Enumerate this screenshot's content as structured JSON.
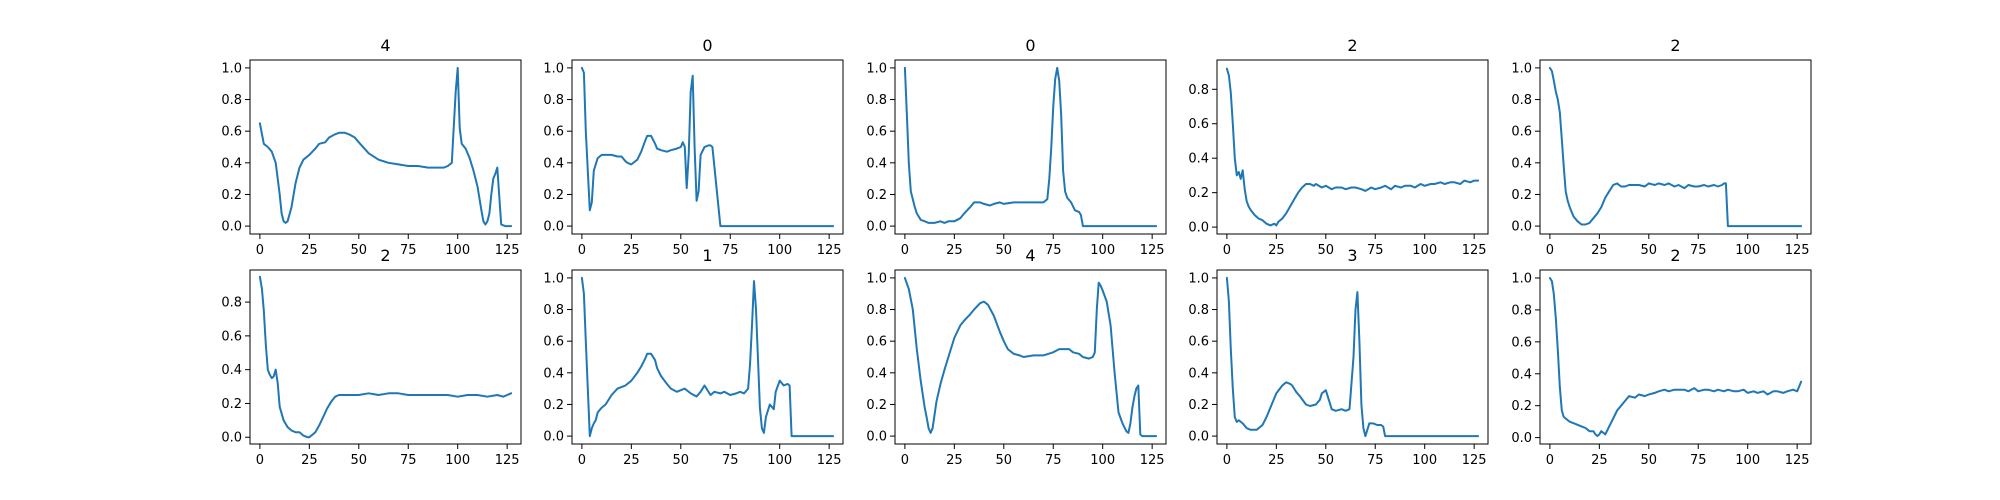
{
  "figure": {
    "background": "#ffffff",
    "line_color": "#1f77b4"
  },
  "chart_data": [
    {
      "type": "line",
      "title": "4",
      "xlabel": "",
      "ylabel": "",
      "xlim": [
        -5,
        132
      ],
      "ylim": [
        -0.05,
        1.05
      ],
      "xticks": [
        0,
        25,
        50,
        75,
        100,
        125
      ],
      "yticks": [
        0.0,
        0.2,
        0.4,
        0.6,
        0.8,
        1.0
      ],
      "grid": false,
      "x": [
        0,
        2,
        4,
        6,
        8,
        9,
        10,
        11,
        12,
        13,
        14,
        16,
        18,
        20,
        22,
        25,
        28,
        30,
        33,
        35,
        38,
        40,
        43,
        45,
        48,
        50,
        55,
        60,
        65,
        70,
        75,
        80,
        85,
        90,
        93,
        95,
        97,
        98,
        99,
        100,
        101,
        102,
        104,
        106,
        108,
        110,
        112,
        113,
        114,
        115,
        116,
        117,
        118,
        119,
        120,
        122,
        124,
        127
      ],
      "y": [
        0.65,
        0.52,
        0.5,
        0.47,
        0.4,
        0.3,
        0.2,
        0.08,
        0.03,
        0.02,
        0.03,
        0.12,
        0.27,
        0.37,
        0.42,
        0.45,
        0.49,
        0.52,
        0.53,
        0.56,
        0.58,
        0.59,
        0.59,
        0.58,
        0.56,
        0.53,
        0.46,
        0.42,
        0.4,
        0.39,
        0.38,
        0.38,
        0.37,
        0.37,
        0.37,
        0.38,
        0.4,
        0.62,
        0.85,
        1.0,
        0.62,
        0.52,
        0.49,
        0.43,
        0.35,
        0.25,
        0.1,
        0.03,
        0.01,
        0.03,
        0.08,
        0.2,
        0.3,
        0.33,
        0.37,
        0.01,
        0.0,
        0.0
      ]
    },
    {
      "type": "line",
      "title": "0",
      "xlabel": "",
      "ylabel": "",
      "xlim": [
        -5,
        132
      ],
      "ylim": [
        -0.05,
        1.05
      ],
      "xticks": [
        0,
        25,
        50,
        75,
        100,
        125
      ],
      "yticks": [
        0.0,
        0.2,
        0.4,
        0.6,
        0.8,
        1.0
      ],
      "grid": false,
      "x": [
        0,
        1,
        2,
        3,
        4,
        5,
        6,
        8,
        10,
        12,
        15,
        18,
        20,
        22,
        23,
        25,
        28,
        30,
        32,
        33,
        35,
        37,
        38,
        40,
        43,
        45,
        48,
        50,
        51,
        52,
        53,
        54,
        55,
        56,
        57,
        58,
        59,
        60,
        62,
        64,
        65,
        66,
        70,
        80,
        90,
        100,
        110,
        120,
        127
      ],
      "y": [
        1.0,
        0.97,
        0.6,
        0.35,
        0.1,
        0.15,
        0.35,
        0.43,
        0.45,
        0.45,
        0.45,
        0.44,
        0.44,
        0.41,
        0.4,
        0.39,
        0.42,
        0.47,
        0.54,
        0.57,
        0.57,
        0.52,
        0.49,
        0.48,
        0.47,
        0.48,
        0.49,
        0.5,
        0.53,
        0.5,
        0.24,
        0.45,
        0.85,
        0.95,
        0.5,
        0.16,
        0.22,
        0.45,
        0.5,
        0.51,
        0.51,
        0.5,
        0.0,
        0.0,
        0.0,
        0.0,
        0.0,
        0.0,
        0.0
      ]
    },
    {
      "type": "line",
      "title": "0",
      "xlabel": "",
      "ylabel": "",
      "xlim": [
        -5,
        132
      ],
      "ylim": [
        -0.05,
        1.05
      ],
      "xticks": [
        0,
        25,
        50,
        75,
        100,
        125
      ],
      "yticks": [
        0.0,
        0.2,
        0.4,
        0.6,
        0.8,
        1.0
      ],
      "grid": false,
      "x": [
        0,
        1,
        2,
        3,
        4,
        5,
        6,
        8,
        10,
        12,
        15,
        18,
        20,
        22,
        25,
        28,
        30,
        33,
        35,
        38,
        40,
        43,
        45,
        48,
        50,
        55,
        60,
        65,
        70,
        72,
        73,
        74,
        75,
        76,
        77,
        78,
        79,
        80,
        81,
        82,
        84,
        86,
        88,
        89,
        90,
        95,
        100,
        110,
        120,
        127
      ],
      "y": [
        1.0,
        0.7,
        0.4,
        0.22,
        0.17,
        0.12,
        0.08,
        0.04,
        0.03,
        0.02,
        0.02,
        0.03,
        0.02,
        0.03,
        0.03,
        0.05,
        0.08,
        0.12,
        0.15,
        0.15,
        0.14,
        0.13,
        0.14,
        0.15,
        0.14,
        0.15,
        0.15,
        0.15,
        0.15,
        0.17,
        0.3,
        0.5,
        0.75,
        0.93,
        1.0,
        0.92,
        0.7,
        0.35,
        0.22,
        0.18,
        0.15,
        0.1,
        0.09,
        0.07,
        0.0,
        0.0,
        0.0,
        0.0,
        0.0,
        0.0
      ]
    },
    {
      "type": "line",
      "title": "2",
      "xlabel": "",
      "ylabel": "",
      "xlim": [
        -5,
        132
      ],
      "ylim": [
        -0.04,
        0.97
      ],
      "xticks": [
        0,
        25,
        50,
        75,
        100,
        125
      ],
      "yticks": [
        0.0,
        0.2,
        0.4,
        0.6,
        0.8
      ],
      "grid": false,
      "x": [
        0,
        1,
        2,
        3,
        4,
        5,
        6,
        7,
        8,
        9,
        10,
        11,
        12,
        14,
        16,
        18,
        20,
        22,
        24,
        25,
        26,
        28,
        30,
        32,
        34,
        36,
        38,
        40,
        42,
        44,
        45,
        48,
        50,
        53,
        55,
        58,
        60,
        63,
        65,
        68,
        70,
        73,
        75,
        78,
        80,
        83,
        85,
        88,
        90,
        93,
        95,
        98,
        100,
        103,
        105,
        108,
        110,
        113,
        115,
        118,
        120,
        123,
        125,
        127
      ],
      "y": [
        0.92,
        0.88,
        0.78,
        0.6,
        0.4,
        0.3,
        0.32,
        0.28,
        0.33,
        0.22,
        0.15,
        0.12,
        0.1,
        0.07,
        0.05,
        0.04,
        0.02,
        0.01,
        0.02,
        0.01,
        0.03,
        0.05,
        0.08,
        0.12,
        0.16,
        0.2,
        0.23,
        0.25,
        0.25,
        0.24,
        0.25,
        0.23,
        0.24,
        0.22,
        0.23,
        0.23,
        0.22,
        0.23,
        0.23,
        0.22,
        0.21,
        0.23,
        0.22,
        0.23,
        0.24,
        0.22,
        0.24,
        0.23,
        0.24,
        0.24,
        0.23,
        0.25,
        0.24,
        0.25,
        0.25,
        0.26,
        0.25,
        0.26,
        0.26,
        0.25,
        0.27,
        0.26,
        0.27,
        0.27
      ]
    },
    {
      "type": "line",
      "title": "2",
      "xlabel": "",
      "ylabel": "",
      "xlim": [
        -5,
        132
      ],
      "ylim": [
        -0.05,
        1.05
      ],
      "xticks": [
        0,
        25,
        50,
        75,
        100,
        125
      ],
      "yticks": [
        0.0,
        0.2,
        0.4,
        0.6,
        0.8,
        1.0
      ],
      "grid": false,
      "x": [
        0,
        1,
        2,
        3,
        4,
        5,
        6,
        7,
        8,
        9,
        10,
        12,
        14,
        16,
        18,
        20,
        22,
        24,
        26,
        28,
        30,
        32,
        34,
        36,
        38,
        40,
        43,
        45,
        48,
        50,
        53,
        55,
        58,
        60,
        63,
        65,
        68,
        70,
        73,
        75,
        78,
        80,
        83,
        85,
        87,
        88,
        89,
        90,
        95,
        100,
        110,
        120,
        127
      ],
      "y": [
        1.0,
        0.98,
        0.92,
        0.85,
        0.8,
        0.72,
        0.55,
        0.38,
        0.22,
        0.16,
        0.12,
        0.06,
        0.03,
        0.01,
        0.01,
        0.02,
        0.05,
        0.08,
        0.12,
        0.18,
        0.22,
        0.26,
        0.27,
        0.25,
        0.25,
        0.26,
        0.26,
        0.26,
        0.25,
        0.27,
        0.26,
        0.27,
        0.26,
        0.27,
        0.25,
        0.26,
        0.24,
        0.26,
        0.25,
        0.25,
        0.26,
        0.25,
        0.26,
        0.25,
        0.26,
        0.27,
        0.27,
        0.0,
        0.0,
        0.0,
        0.0,
        0.0,
        0.0
      ]
    },
    {
      "type": "line",
      "title": "2",
      "xlabel": "",
      "ylabel": "",
      "xlim": [
        -5,
        132
      ],
      "ylim": [
        -0.04,
        0.99
      ],
      "xticks": [
        0,
        25,
        50,
        75,
        100,
        125
      ],
      "yticks": [
        0.0,
        0.2,
        0.4,
        0.6,
        0.8
      ],
      "grid": false,
      "x": [
        0,
        1,
        2,
        3,
        4,
        5,
        6,
        7,
        8,
        9,
        10,
        12,
        14,
        16,
        18,
        20,
        22,
        24,
        25,
        26,
        28,
        30,
        32,
        34,
        36,
        38,
        40,
        45,
        50,
        55,
        60,
        65,
        70,
        75,
        80,
        85,
        90,
        95,
        100,
        105,
        110,
        115,
        120,
        123,
        125,
        127
      ],
      "y": [
        0.95,
        0.88,
        0.75,
        0.55,
        0.4,
        0.37,
        0.35,
        0.36,
        0.4,
        0.32,
        0.18,
        0.1,
        0.06,
        0.04,
        0.03,
        0.03,
        0.01,
        0.0,
        0.0,
        0.01,
        0.03,
        0.07,
        0.12,
        0.17,
        0.21,
        0.24,
        0.25,
        0.25,
        0.25,
        0.26,
        0.25,
        0.26,
        0.26,
        0.25,
        0.25,
        0.25,
        0.25,
        0.25,
        0.24,
        0.25,
        0.25,
        0.24,
        0.25,
        0.24,
        0.25,
        0.26
      ]
    },
    {
      "type": "line",
      "title": "1",
      "xlabel": "",
      "ylabel": "",
      "xlim": [
        -5,
        132
      ],
      "ylim": [
        -0.05,
        1.05
      ],
      "xticks": [
        0,
        25,
        50,
        75,
        100,
        125
      ],
      "yticks": [
        0.0,
        0.2,
        0.4,
        0.6,
        0.8,
        1.0
      ],
      "grid": false,
      "x": [
        0,
        1,
        2,
        3,
        4,
        5,
        6,
        7,
        8,
        10,
        12,
        15,
        18,
        20,
        22,
        25,
        28,
        30,
        32,
        33,
        35,
        37,
        38,
        40,
        43,
        45,
        48,
        50,
        52,
        55,
        58,
        60,
        62,
        65,
        67,
        70,
        72,
        75,
        78,
        80,
        82,
        84,
        85,
        86,
        87,
        88,
        89,
        90,
        91,
        92,
        93,
        95,
        97,
        98,
        100,
        102,
        104,
        105,
        106,
        110,
        120,
        127
      ],
      "y": [
        1.0,
        0.9,
        0.6,
        0.3,
        0.0,
        0.05,
        0.08,
        0.1,
        0.15,
        0.18,
        0.2,
        0.26,
        0.3,
        0.31,
        0.32,
        0.35,
        0.4,
        0.44,
        0.49,
        0.52,
        0.52,
        0.48,
        0.43,
        0.38,
        0.33,
        0.3,
        0.28,
        0.29,
        0.3,
        0.27,
        0.25,
        0.28,
        0.32,
        0.26,
        0.28,
        0.27,
        0.28,
        0.26,
        0.27,
        0.28,
        0.27,
        0.3,
        0.45,
        0.7,
        0.98,
        0.8,
        0.5,
        0.18,
        0.05,
        0.02,
        0.12,
        0.2,
        0.17,
        0.28,
        0.35,
        0.32,
        0.33,
        0.32,
        0.0,
        0.0,
        0.0,
        0.0
      ]
    },
    {
      "type": "line",
      "title": "4",
      "xlabel": "",
      "ylabel": "",
      "xlim": [
        -5,
        132
      ],
      "ylim": [
        -0.05,
        1.05
      ],
      "xticks": [
        0,
        25,
        50,
        75,
        100,
        125
      ],
      "yticks": [
        0.0,
        0.2,
        0.4,
        0.6,
        0.8,
        1.0
      ],
      "grid": false,
      "x": [
        0,
        2,
        4,
        6,
        8,
        10,
        11,
        12,
        13,
        14,
        16,
        18,
        20,
        22,
        25,
        28,
        30,
        33,
        35,
        38,
        40,
        42,
        45,
        48,
        50,
        52,
        55,
        58,
        60,
        65,
        70,
        75,
        78,
        80,
        83,
        85,
        88,
        90,
        93,
        95,
        96,
        97,
        98,
        99,
        100,
        102,
        104,
        106,
        108,
        110,
        112,
        113,
        114,
        115,
        116,
        117,
        118,
        119,
        120,
        122,
        125,
        127
      ],
      "y": [
        1.0,
        0.93,
        0.8,
        0.55,
        0.35,
        0.18,
        0.12,
        0.05,
        0.02,
        0.05,
        0.22,
        0.33,
        0.42,
        0.5,
        0.62,
        0.7,
        0.73,
        0.77,
        0.8,
        0.84,
        0.85,
        0.83,
        0.76,
        0.66,
        0.6,
        0.55,
        0.52,
        0.51,
        0.5,
        0.51,
        0.51,
        0.53,
        0.55,
        0.55,
        0.55,
        0.53,
        0.52,
        0.5,
        0.49,
        0.5,
        0.53,
        0.8,
        0.97,
        0.95,
        0.92,
        0.85,
        0.7,
        0.4,
        0.15,
        0.08,
        0.03,
        0.02,
        0.08,
        0.18,
        0.25,
        0.3,
        0.32,
        0.01,
        0.0,
        0.0,
        0.0,
        0.0
      ]
    },
    {
      "type": "line",
      "title": "3",
      "xlabel": "",
      "ylabel": "",
      "xlim": [
        -5,
        132
      ],
      "ylim": [
        -0.05,
        1.05
      ],
      "xticks": [
        0,
        25,
        50,
        75,
        100,
        125
      ],
      "yticks": [
        0.0,
        0.2,
        0.4,
        0.6,
        0.8,
        1.0
      ],
      "grid": false,
      "x": [
        0,
        1,
        2,
        3,
        4,
        5,
        6,
        8,
        10,
        12,
        15,
        18,
        20,
        22,
        25,
        28,
        30,
        32,
        33,
        35,
        37,
        40,
        42,
        45,
        47,
        48,
        50,
        52,
        53,
        55,
        58,
        60,
        62,
        64,
        65,
        66,
        67,
        68,
        69,
        70,
        72,
        74,
        76,
        78,
        79,
        80,
        90,
        100,
        110,
        120,
        127
      ],
      "y": [
        1.0,
        0.85,
        0.55,
        0.3,
        0.12,
        0.09,
        0.1,
        0.08,
        0.05,
        0.04,
        0.04,
        0.07,
        0.12,
        0.18,
        0.27,
        0.32,
        0.34,
        0.33,
        0.32,
        0.28,
        0.25,
        0.2,
        0.19,
        0.2,
        0.23,
        0.27,
        0.29,
        0.21,
        0.17,
        0.16,
        0.17,
        0.16,
        0.17,
        0.5,
        0.8,
        0.91,
        0.6,
        0.2,
        0.05,
        0.0,
        0.08,
        0.08,
        0.07,
        0.07,
        0.06,
        0.0,
        0.0,
        0.0,
        0.0,
        0.0,
        0.0
      ]
    },
    {
      "type": "line",
      "title": "2",
      "xlabel": "",
      "ylabel": "",
      "xlim": [
        -5,
        132
      ],
      "ylim": [
        -0.04,
        1.05
      ],
      "xticks": [
        0,
        25,
        50,
        75,
        100,
        125
      ],
      "yticks": [
        0.0,
        0.2,
        0.4,
        0.6,
        0.8,
        1.0
      ],
      "grid": false,
      "x": [
        0,
        1,
        2,
        3,
        4,
        5,
        6,
        7,
        8,
        9,
        10,
        12,
        14,
        16,
        18,
        20,
        22,
        23,
        24,
        25,
        26,
        28,
        30,
        32,
        34,
        36,
        38,
        40,
        43,
        45,
        48,
        50,
        53,
        55,
        58,
        60,
        63,
        65,
        68,
        70,
        73,
        75,
        78,
        80,
        83,
        85,
        88,
        90,
        93,
        95,
        98,
        100,
        103,
        105,
        108,
        110,
        113,
        115,
        118,
        120,
        123,
        125,
        127
      ],
      "y": [
        1.0,
        0.98,
        0.9,
        0.75,
        0.55,
        0.32,
        0.17,
        0.13,
        0.12,
        0.11,
        0.1,
        0.09,
        0.08,
        0.07,
        0.06,
        0.04,
        0.04,
        0.02,
        0.01,
        0.02,
        0.04,
        0.02,
        0.07,
        0.12,
        0.17,
        0.2,
        0.23,
        0.26,
        0.25,
        0.27,
        0.26,
        0.27,
        0.28,
        0.29,
        0.3,
        0.29,
        0.3,
        0.3,
        0.3,
        0.29,
        0.31,
        0.29,
        0.3,
        0.3,
        0.29,
        0.3,
        0.29,
        0.3,
        0.29,
        0.29,
        0.3,
        0.28,
        0.29,
        0.28,
        0.29,
        0.27,
        0.29,
        0.29,
        0.28,
        0.29,
        0.3,
        0.29,
        0.35
      ]
    }
  ]
}
